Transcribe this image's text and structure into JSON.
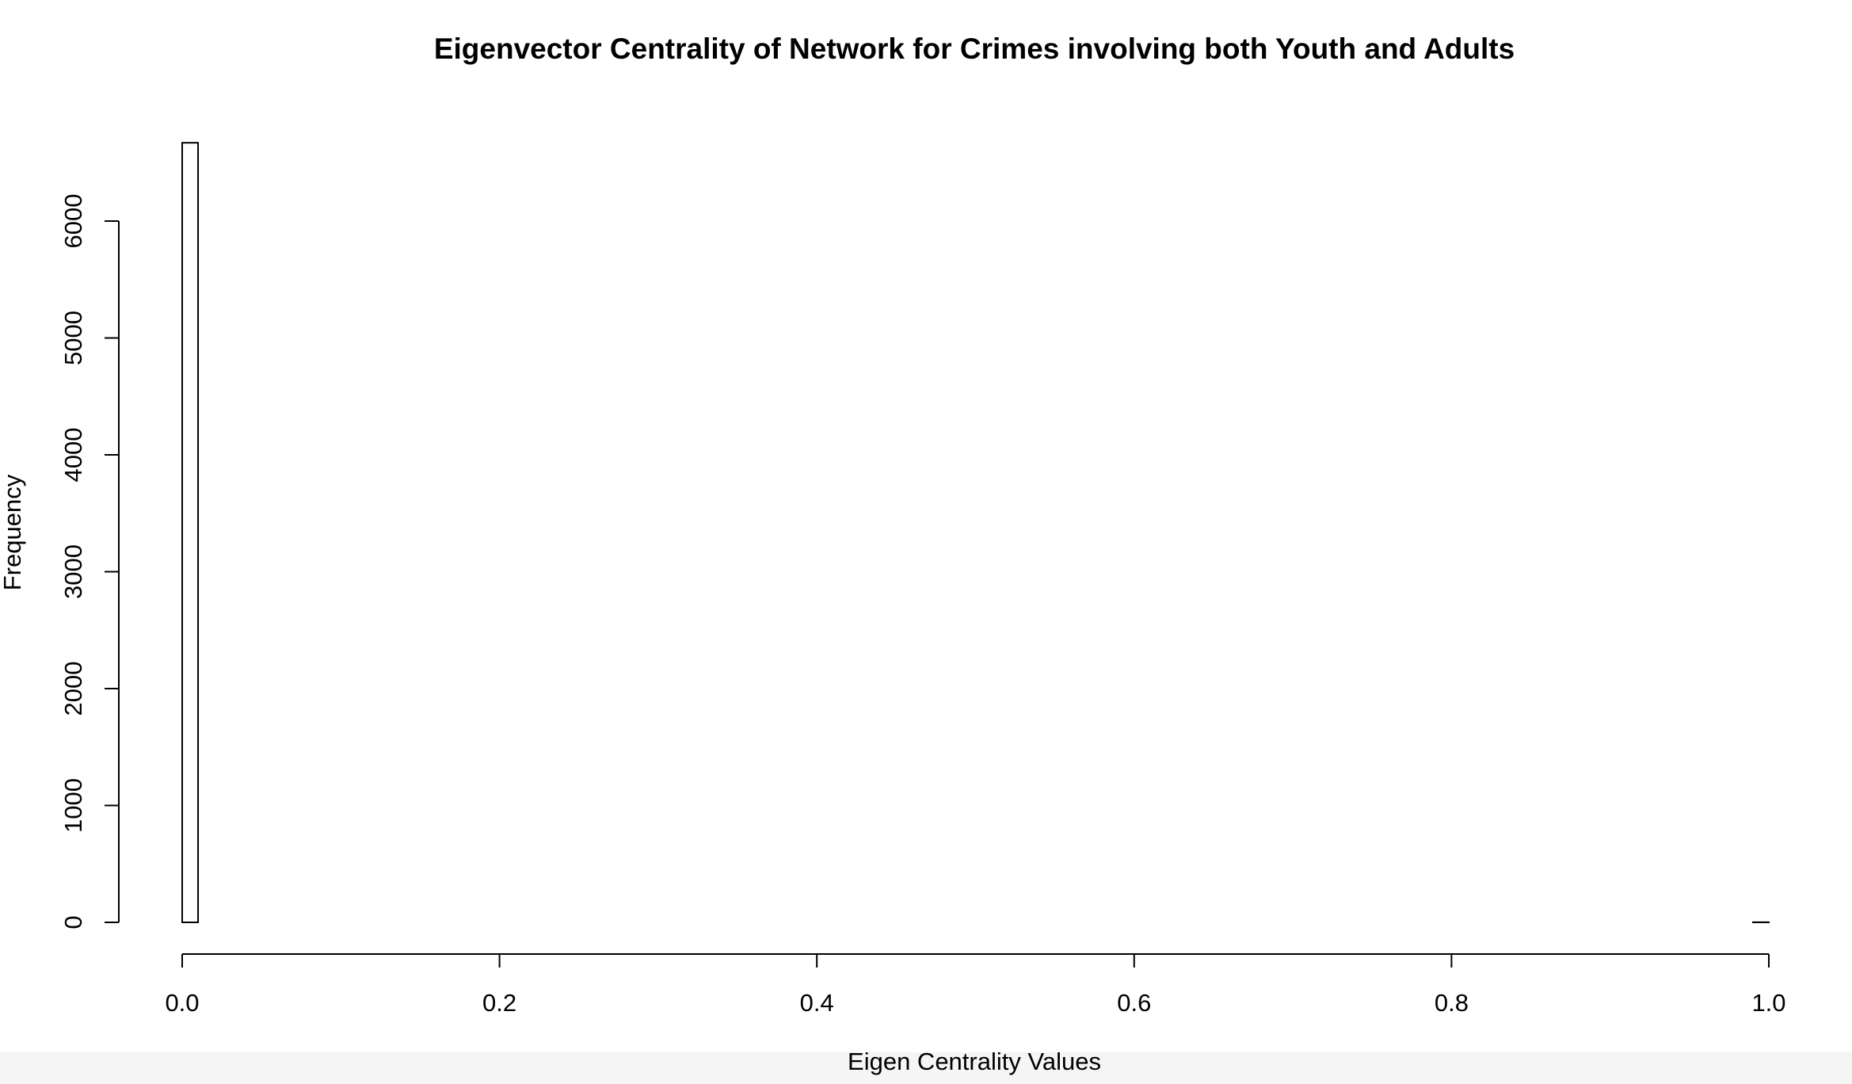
{
  "chart_data": {
    "type": "bar",
    "title": "Eigenvector Centrality of Network for Crimes involving both Youth and Adults",
    "xlabel": "Eigen Centrality Values",
    "ylabel": "Frequency",
    "xlim": [
      0.0,
      1.0
    ],
    "ylim": [
      0,
      6700
    ],
    "x_ticks": [
      "0.0",
      "0.2",
      "0.4",
      "0.6",
      "0.8",
      "1.0"
    ],
    "y_ticks": [
      "0",
      "1000",
      "2000",
      "3000",
      "4000",
      "5000",
      "6000"
    ],
    "bin_width": 0.01,
    "bins": [
      {
        "start": 0.0,
        "end": 0.01,
        "value": 6670
      },
      {
        "start": 0.99,
        "end": 1.0,
        "value": 1
      }
    ],
    "grid": false,
    "legend": "none",
    "colors": {
      "bar_fill": "#ffffff",
      "bar_stroke": "#000000",
      "background": "#ffffff"
    }
  }
}
